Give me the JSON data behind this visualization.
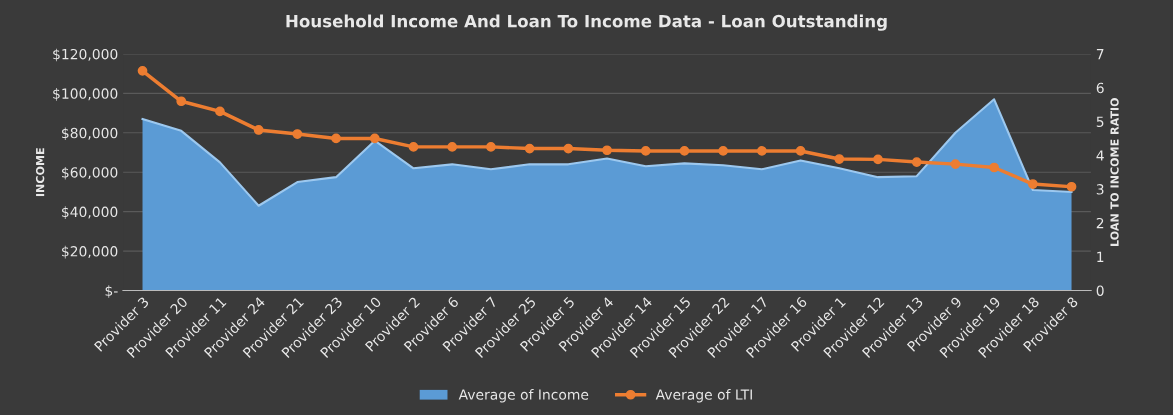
{
  "chart_data": {
    "type": "area",
    "title": "Household Income And Loan To Income Data - Loan Outstanding",
    "ylabel": "INCOME",
    "y2label": "LOAN TO INCOME RATIO",
    "categories": [
      "Provider 3",
      "Provider 20",
      "Provider 11",
      "Provider 24",
      "Provider 21",
      "Provider 23",
      "Provider 10",
      "Provider 2",
      "Provider 6",
      "Provider 7",
      "Provider 25",
      "Provider 5",
      "Provider 4",
      "Provider 14",
      "Provider 15",
      "Provider 22",
      "Provider 17",
      "Provider 16",
      "Provider 1",
      "Provider 12",
      "Provider 13",
      "Provider 9",
      "Provider 19",
      "Provider 18",
      "Provider 8"
    ],
    "series": [
      {
        "name": "Average of Income",
        "color": "#5b9bd5",
        "values": [
          87000,
          81000,
          65000,
          43000,
          55000,
          57500,
          76000,
          62000,
          64000,
          61500,
          64000,
          64000,
          67000,
          63000,
          64500,
          63500,
          61500,
          66000,
          62000,
          57500,
          58000,
          80000,
          97000,
          51000,
          50000
        ]
      },
      {
        "name": "Average of LTI",
        "type": "line",
        "marker": "circle",
        "axis": "y2",
        "color": "#ed7d31",
        "values": [
          6.5,
          5.6,
          5.3,
          4.75,
          4.63,
          4.5,
          4.5,
          4.25,
          4.25,
          4.25,
          4.2,
          4.2,
          4.15,
          4.13,
          4.13,
          4.13,
          4.13,
          4.13,
          3.89,
          3.88,
          3.8,
          3.74,
          3.64,
          3.15,
          3.07
        ]
      }
    ],
    "ylim": [
      0,
      120000
    ],
    "yticks": [
      {
        "value": 0,
        "label": "$-"
      },
      {
        "value": 20000,
        "label": "$20,000"
      },
      {
        "value": 40000,
        "label": "$40,000"
      },
      {
        "value": 60000,
        "label": "$60,000"
      },
      {
        "value": 80000,
        "label": "$80,000"
      },
      {
        "value": 100000,
        "label": "$100,000"
      },
      {
        "value": 120000,
        "label": "$120,000"
      }
    ],
    "y2lim": [
      0,
      7
    ],
    "y2ticks": [
      0,
      1,
      2,
      3,
      4,
      5,
      6,
      7
    ],
    "grid": "y",
    "legend": "bottom",
    "line_style": "solid"
  }
}
